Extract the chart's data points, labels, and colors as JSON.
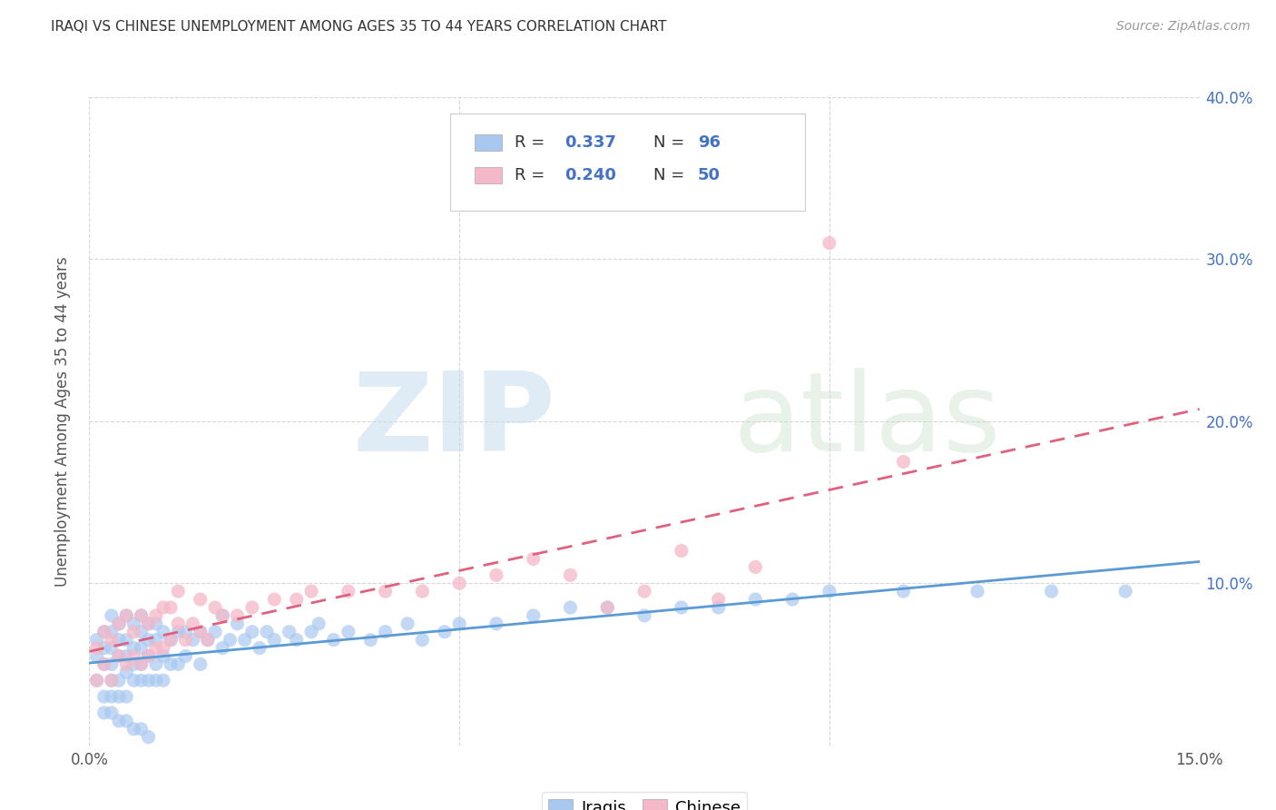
{
  "title": "IRAQI VS CHINESE UNEMPLOYMENT AMONG AGES 35 TO 44 YEARS CORRELATION CHART",
  "source": "Source: ZipAtlas.com",
  "ylabel": "Unemployment Among Ages 35 to 44 years",
  "xlim": [
    0,
    0.15
  ],
  "ylim": [
    0,
    0.4
  ],
  "iraqi_color": "#a8c8f0",
  "iraqi_line_color": "#5b9bd5",
  "chinese_color": "#f4b8c8",
  "chinese_line_color": "#e06080",
  "R_iraqi": 0.337,
  "N_iraqi": 96,
  "R_chinese": 0.24,
  "N_chinese": 50,
  "legend_labels": [
    "Iraqis",
    "Chinese"
  ],
  "background_color": "#ffffff",
  "text_color_dark": "#333333",
  "text_color_blue": "#4472c4",
  "text_color_gray": "#888888",
  "iraqi_x": [
    0.001,
    0.001,
    0.001,
    0.002,
    0.002,
    0.002,
    0.002,
    0.003,
    0.003,
    0.003,
    0.003,
    0.003,
    0.003,
    0.004,
    0.004,
    0.004,
    0.004,
    0.004,
    0.005,
    0.005,
    0.005,
    0.005,
    0.005,
    0.006,
    0.006,
    0.006,
    0.006,
    0.007,
    0.007,
    0.007,
    0.007,
    0.007,
    0.008,
    0.008,
    0.008,
    0.008,
    0.009,
    0.009,
    0.009,
    0.009,
    0.01,
    0.01,
    0.01,
    0.011,
    0.011,
    0.012,
    0.012,
    0.013,
    0.013,
    0.014,
    0.015,
    0.015,
    0.016,
    0.017,
    0.018,
    0.018,
    0.019,
    0.02,
    0.021,
    0.022,
    0.023,
    0.024,
    0.025,
    0.027,
    0.028,
    0.03,
    0.031,
    0.033,
    0.035,
    0.038,
    0.04,
    0.043,
    0.045,
    0.048,
    0.05,
    0.055,
    0.06,
    0.065,
    0.07,
    0.075,
    0.08,
    0.085,
    0.09,
    0.095,
    0.1,
    0.11,
    0.12,
    0.13,
    0.14,
    0.002,
    0.003,
    0.004,
    0.005,
    0.006,
    0.007,
    0.008
  ],
  "iraqi_y": [
    0.04,
    0.055,
    0.065,
    0.03,
    0.05,
    0.06,
    0.07,
    0.03,
    0.04,
    0.05,
    0.06,
    0.07,
    0.08,
    0.03,
    0.04,
    0.055,
    0.065,
    0.075,
    0.03,
    0.045,
    0.055,
    0.065,
    0.08,
    0.04,
    0.05,
    0.06,
    0.075,
    0.04,
    0.05,
    0.06,
    0.07,
    0.08,
    0.04,
    0.055,
    0.065,
    0.075,
    0.04,
    0.05,
    0.065,
    0.075,
    0.04,
    0.055,
    0.07,
    0.05,
    0.065,
    0.05,
    0.07,
    0.055,
    0.07,
    0.065,
    0.05,
    0.07,
    0.065,
    0.07,
    0.06,
    0.08,
    0.065,
    0.075,
    0.065,
    0.07,
    0.06,
    0.07,
    0.065,
    0.07,
    0.065,
    0.07,
    0.075,
    0.065,
    0.07,
    0.065,
    0.07,
    0.075,
    0.065,
    0.07,
    0.075,
    0.075,
    0.08,
    0.085,
    0.085,
    0.08,
    0.085,
    0.085,
    0.09,
    0.09,
    0.095,
    0.095,
    0.095,
    0.095,
    0.095,
    0.02,
    0.02,
    0.015,
    0.015,
    0.01,
    0.01,
    0.005
  ],
  "chinese_x": [
    0.001,
    0.001,
    0.002,
    0.002,
    0.003,
    0.003,
    0.004,
    0.004,
    0.005,
    0.005,
    0.006,
    0.006,
    0.007,
    0.007,
    0.008,
    0.008,
    0.009,
    0.009,
    0.01,
    0.01,
    0.011,
    0.011,
    0.012,
    0.012,
    0.013,
    0.014,
    0.015,
    0.015,
    0.016,
    0.017,
    0.018,
    0.02,
    0.022,
    0.025,
    0.028,
    0.03,
    0.035,
    0.04,
    0.045,
    0.05,
    0.055,
    0.06,
    0.065,
    0.07,
    0.075,
    0.08,
    0.085,
    0.09,
    0.1,
    0.11
  ],
  "chinese_y": [
    0.04,
    0.06,
    0.05,
    0.07,
    0.04,
    0.065,
    0.055,
    0.075,
    0.05,
    0.08,
    0.055,
    0.07,
    0.05,
    0.08,
    0.055,
    0.075,
    0.06,
    0.08,
    0.06,
    0.085,
    0.065,
    0.085,
    0.075,
    0.095,
    0.065,
    0.075,
    0.07,
    0.09,
    0.065,
    0.085,
    0.08,
    0.08,
    0.085,
    0.09,
    0.09,
    0.095,
    0.095,
    0.095,
    0.095,
    0.1,
    0.105,
    0.115,
    0.105,
    0.085,
    0.095,
    0.12,
    0.09,
    0.11,
    0.31,
    0.175
  ]
}
